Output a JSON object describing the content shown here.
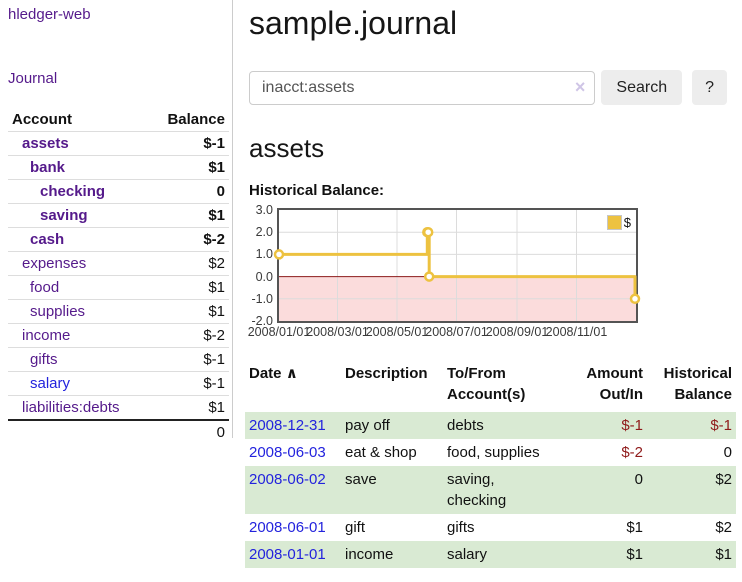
{
  "app": {
    "brand": "hledger-web",
    "nav_journal": "Journal"
  },
  "colors": {
    "link_purple": "#551a8b",
    "link_blue": "#2323dd",
    "negative_strong": "#9c1313",
    "negative_soft": "#b96a6a",
    "register_negative": "#8f1a1a",
    "row_green": "#d9ead3",
    "chart_line": "#edc240",
    "chart_negative_region": "#fbdcdc",
    "chart_zero_line": "#8b1a1a"
  },
  "sidebar": {
    "columns": [
      "Account",
      "Balance"
    ],
    "accounts": [
      {
        "name": "assets",
        "indent": 1,
        "balance": "$-1",
        "bold": true,
        "neg": "strong"
      },
      {
        "name": "bank",
        "indent": 2,
        "balance": "$1",
        "bold": true
      },
      {
        "name": "checking",
        "indent": 3,
        "balance": "0",
        "bold": true
      },
      {
        "name": "saving",
        "indent": 3,
        "balance": "$1",
        "bold": true
      },
      {
        "name": "cash",
        "indent": 2,
        "balance": "$-2",
        "bold": true,
        "neg": "strong"
      },
      {
        "name": "expenses",
        "indent": 1,
        "balance": "$2"
      },
      {
        "name": "food",
        "indent": 2,
        "balance": "$1"
      },
      {
        "name": "supplies",
        "indent": 2,
        "balance": "$1"
      },
      {
        "name": "income",
        "indent": 1,
        "balance": "$-2",
        "neg": "soft"
      },
      {
        "name": "gifts",
        "indent": 2,
        "balance": "$-1",
        "neg": "soft"
      },
      {
        "name": "salary",
        "indent": 2,
        "balance": "$-1",
        "neg": "soft",
        "link": "blue"
      },
      {
        "name": "liabilities:debts",
        "indent": 1,
        "balance": "$1"
      }
    ],
    "total": "0"
  },
  "header": {
    "title": "sample.journal"
  },
  "search": {
    "value": "inacct:assets",
    "clear_icon": "×",
    "button": "Search",
    "help_button": "?"
  },
  "account_page": {
    "heading": "assets",
    "chart_label": "Historical Balance:"
  },
  "chart_data": {
    "type": "line",
    "step": true,
    "title": "Historical Balance",
    "legend": "$",
    "legend_position": "top-right",
    "grid": true,
    "ylim": [
      -2.0,
      3.0
    ],
    "yticks": [
      3.0,
      2.0,
      1.0,
      0.0,
      -1.0,
      -2.0
    ],
    "xticks": [
      {
        "label": "2008/01/01",
        "x": 0.0
      },
      {
        "label": "2008/03/01",
        "x": 0.1639
      },
      {
        "label": "2008/05/01",
        "x": 0.3306
      },
      {
        "label": "2008/07/01",
        "x": 0.4973
      },
      {
        "label": "2008/09/01",
        "x": 0.6667
      },
      {
        "label": "2008/11/01",
        "x": 0.8333
      }
    ],
    "series": [
      {
        "name": "$",
        "color": "#edc240",
        "points": [
          {
            "date": "2008-01-01",
            "x": 0.0,
            "y": 1
          },
          {
            "date": "2008-06-01",
            "x": 0.4153,
            "y": 2
          },
          {
            "date": "2008-06-02",
            "x": 0.418,
            "y": 2
          },
          {
            "date": "2008-06-03",
            "x": 0.4208,
            "y": 0
          },
          {
            "date": "2008-12-31",
            "x": 0.9973,
            "y": -1
          }
        ]
      }
    ],
    "negative_region_color": "#fbdcdc",
    "zero_line_color": "#8b1a1a"
  },
  "register": {
    "sort_icon": "∧",
    "columns": {
      "date": "Date",
      "description": "Description",
      "account": [
        "To/From",
        "Account(s)"
      ],
      "amount": [
        "Amount",
        "Out/In"
      ],
      "balance": [
        "Historical",
        "Balance"
      ]
    },
    "rows": [
      {
        "date": "2008-12-31",
        "description": "pay off",
        "accounts": [
          "debts"
        ],
        "amount": "$-1",
        "balance": "$-1",
        "shaded": true
      },
      {
        "date": "2008-06-03",
        "description": "eat & shop",
        "accounts": [
          "food, supplies"
        ],
        "amount": "$-2",
        "balance": "0",
        "shaded": false
      },
      {
        "date": "2008-06-02",
        "description": "save",
        "accounts": [
          "saving,",
          "checking"
        ],
        "amount": "0",
        "balance": "$2",
        "shaded": true
      },
      {
        "date": "2008-06-01",
        "description": "gift",
        "accounts": [
          "gifts"
        ],
        "amount": "$1",
        "balance": "$2",
        "shaded": false
      },
      {
        "date": "2008-01-01",
        "description": "income",
        "accounts": [
          "salary"
        ],
        "amount": "$1",
        "balance": "$1",
        "shaded": true
      }
    ]
  }
}
